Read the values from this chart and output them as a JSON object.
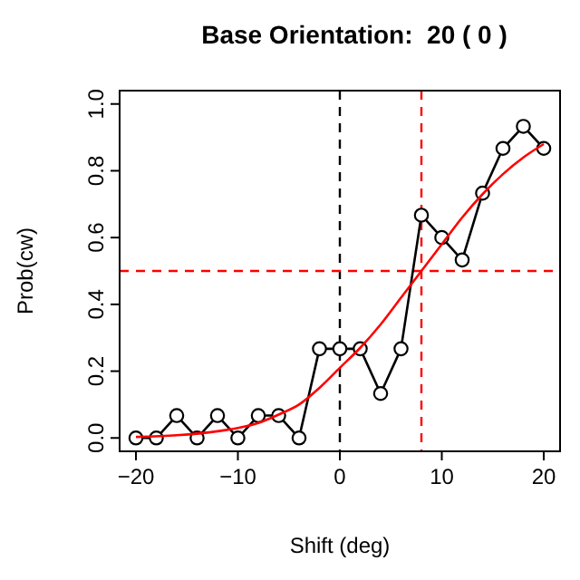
{
  "chart_data": {
    "type": "line",
    "title": "Base Orientation:  20 ( 0 )",
    "xlabel": "Shift (deg)",
    "ylabel": "Prob(cw)",
    "x": [
      -20,
      -18,
      -16,
      -14,
      -12,
      -10,
      -8,
      -6,
      -4,
      -2,
      0,
      2,
      4,
      6,
      8,
      10,
      12,
      14,
      16,
      18,
      20
    ],
    "xlim": [
      -21.6,
      21.6
    ],
    "ylim": [
      -0.04,
      1.04
    ],
    "xticks": [
      -20,
      -10,
      0,
      10,
      20
    ],
    "yticks": [
      {
        "value": 0,
        "label": "0.0"
      },
      0.2,
      0.4,
      0.6,
      0.8,
      {
        "value": 1,
        "label": "1.0"
      }
    ],
    "series": [
      {
        "color": "#000000",
        "marker": "circle",
        "line_style": "solid",
        "values": [
          0,
          0,
          0.067,
          0,
          0.067,
          0,
          0.067,
          0.067,
          0,
          0.267,
          0.267,
          0.267,
          0.133,
          0.267,
          0.667,
          0.6,
          0.533,
          0.733,
          0.867,
          0.933,
          0.867
        ]
      },
      {
        "type": "line",
        "color": "#ff0000",
        "marker": "none",
        "line_style": "solid",
        "x": [
          -20,
          -16,
          -12,
          -10,
          -8,
          -6,
          -4,
          -2,
          0,
          2,
          4,
          6,
          8,
          10,
          12,
          14,
          16,
          18,
          20
        ],
        "values": [
          0.003,
          0.008,
          0.02,
          0.03,
          0.045,
          0.07,
          0.1,
          0.15,
          0.21,
          0.27,
          0.34,
          0.42,
          0.5,
          0.58,
          0.66,
          0.73,
          0.79,
          0.84,
          0.88
        ]
      }
    ],
    "ref_lines": [
      {
        "axis": "x",
        "value": 0,
        "color": "#000000",
        "line_style": "dashed"
      },
      {
        "axis": "x",
        "value": 8,
        "color": "#ff0000",
        "line_style": "dashed"
      },
      {
        "axis": "y",
        "value": 0.5,
        "color": "#ff0000",
        "line_style": "dashed"
      }
    ],
    "grid": false
  }
}
